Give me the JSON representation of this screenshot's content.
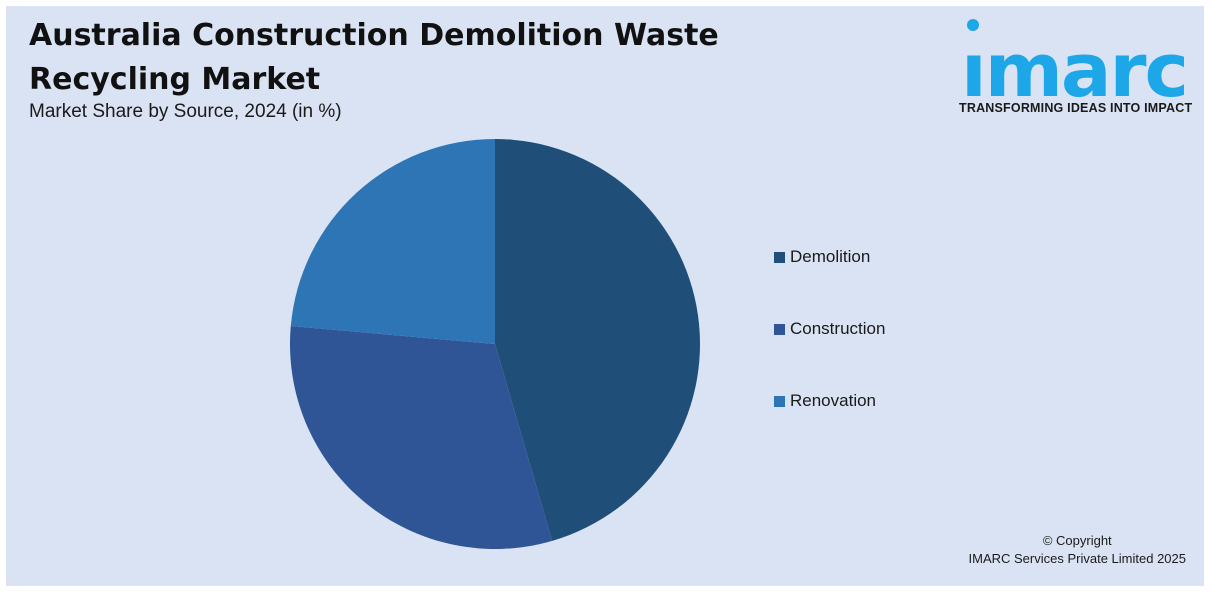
{
  "header": {
    "title": "Australia Construction Demolition Waste Recycling Market",
    "subtitle": "Market Share by Source, 2024 (in %)"
  },
  "logo": {
    "wordmark": "imarc",
    "tagline": "TRANSFORMING IDEAS INTO IMPACT",
    "color": "#1ea7e8"
  },
  "footer": {
    "copyright_line1": "© Copyright",
    "copyright_line2": "IMARC Services Private Limited 2025"
  },
  "chart_data": {
    "type": "pie",
    "title": "Australia Construction Demolition Waste Recycling Market",
    "subtitle": "Market Share by Source, 2024 (in %)",
    "categories": [
      "Demolition",
      "Construction",
      "Renovation"
    ],
    "values": [
      45.5,
      30.9,
      23.6
    ],
    "colors": [
      "#1f4e79",
      "#2f5597",
      "#2e75b6"
    ],
    "start_angle": "12 o'clock",
    "direction": "clockwise",
    "legend_position": "right"
  }
}
